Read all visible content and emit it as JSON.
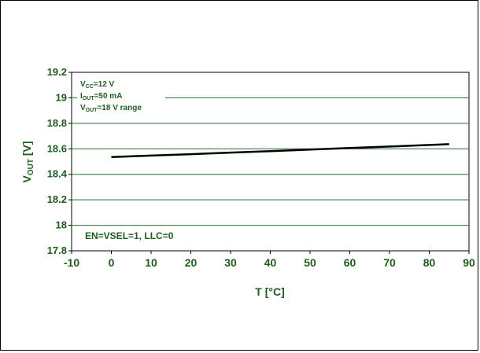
{
  "chart_data": {
    "type": "line",
    "title": "",
    "xlabel": "T [°C]",
    "ylabel": {
      "main": "V",
      "sub": "OUT",
      "unit": " [V]"
    },
    "xlim": [
      -10,
      90
    ],
    "ylim": [
      17.8,
      19.2
    ],
    "xticks": [
      "-10",
      "0",
      "10",
      "20",
      "30",
      "40",
      "50",
      "60",
      "70",
      "80",
      "90"
    ],
    "yticks": [
      "17.8",
      "18",
      "18.2",
      "18.4",
      "18.6",
      "18.8",
      "19",
      "19.2"
    ],
    "grid": true,
    "series": [
      {
        "x": [
          0,
          10,
          20,
          30,
          40,
          50,
          60,
          70,
          80,
          85
        ],
        "y": [
          18.535,
          18.547,
          18.558,
          18.57,
          18.582,
          18.594,
          18.606,
          18.618,
          18.63,
          18.636
        ],
        "color": "#000000"
      }
    ],
    "annotations": {
      "conditions": [
        {
          "main": "V",
          "sub": "CC",
          "rest": "=12 V"
        },
        {
          "main": "I",
          "sub": "OUT",
          "rest": "=50 mA"
        },
        {
          "main": "V",
          "sub": "OUT",
          "rest": "=18 V range"
        }
      ],
      "mode": "EN=VSEL=1, LLC=0"
    }
  }
}
